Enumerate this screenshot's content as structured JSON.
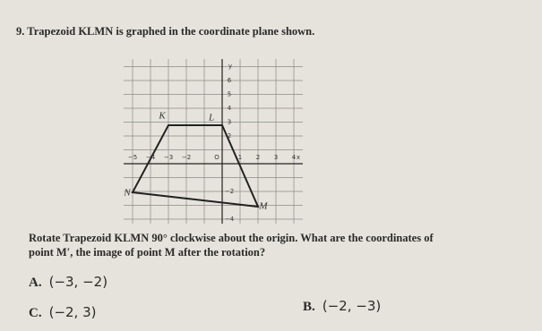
{
  "question": {
    "number": "9.",
    "text": "Trapezoid KLMN is graphed in the coordinate plane shown.",
    "prompt": "Rotate Trapezoid KLMN 90° clockwise about the origin. What are the coordinates of point M′, the image of point M after the rotation?"
  },
  "graph": {
    "x_label": "x",
    "y_label": "y",
    "origin_label": "O",
    "x_ticks": [
      "−5",
      "−4",
      "−3",
      "−2",
      "1",
      "2",
      "3",
      "4"
    ],
    "y_ticks": [
      "6",
      "5",
      "4",
      "3",
      "2",
      "−2",
      "−4"
    ],
    "points": {
      "K": "K",
      "L": "L",
      "M": "M",
      "N": "N"
    }
  },
  "choices": [
    {
      "letter": "A.",
      "text": "(−3, −2)"
    },
    {
      "letter": "B.",
      "text": "(−2, −3)"
    },
    {
      "letter": "C.",
      "text": "(−2, 3)"
    }
  ]
}
